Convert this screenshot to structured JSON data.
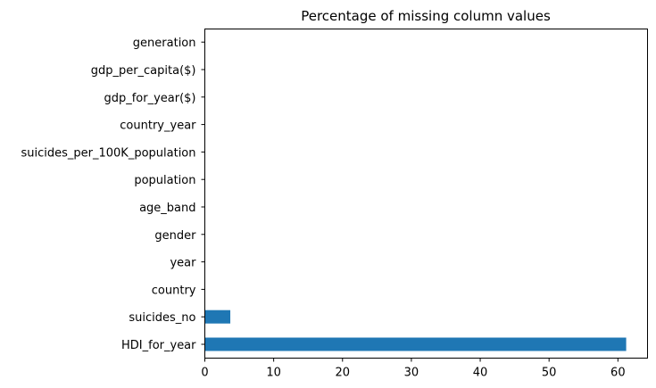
{
  "chart_data": {
    "type": "bar",
    "orientation": "horizontal",
    "title": "Percentage of missing column values",
    "xlabel": "",
    "ylabel": "",
    "categories": [
      "HDI_for_year",
      "suicides_no",
      "country",
      "year",
      "gender",
      "age_band",
      "population",
      "suicides_per_100K_population",
      "country_year",
      "gdp_for_year($)",
      "gdp_per_capita($)",
      "generation"
    ],
    "values": [
      61.2,
      3.7,
      0,
      0,
      0,
      0,
      0,
      0,
      0,
      0,
      0,
      0
    ],
    "xlim": [
      0,
      64.3
    ],
    "xticks": [
      0,
      10,
      20,
      30,
      40,
      50,
      60
    ],
    "grid": false,
    "legend": "none",
    "bar_color": "#1f77b4"
  }
}
